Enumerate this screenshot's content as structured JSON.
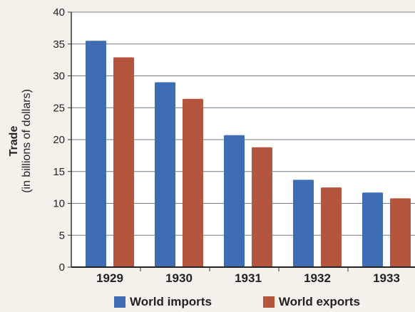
{
  "chart_data": {
    "type": "bar",
    "categories": [
      "1929",
      "1930",
      "1931",
      "1932",
      "1933"
    ],
    "series": [
      {
        "name": "World imports",
        "values": [
          35.5,
          29,
          20.7,
          13.7,
          11.7
        ],
        "color": "#3f6db3"
      },
      {
        "name": "World exports",
        "values": [
          32.9,
          26.4,
          18.8,
          12.5,
          10.8
        ],
        "color": "#b5553d"
      }
    ],
    "ylabel": "Trade",
    "ylabel_sub": "(in billions of dollars)",
    "ylim": [
      0,
      40
    ],
    "yticks": [
      "0",
      "5",
      "10",
      "15",
      "20",
      "25",
      "30",
      "35",
      "40"
    ],
    "grid": true,
    "legend_position": "bottom"
  }
}
